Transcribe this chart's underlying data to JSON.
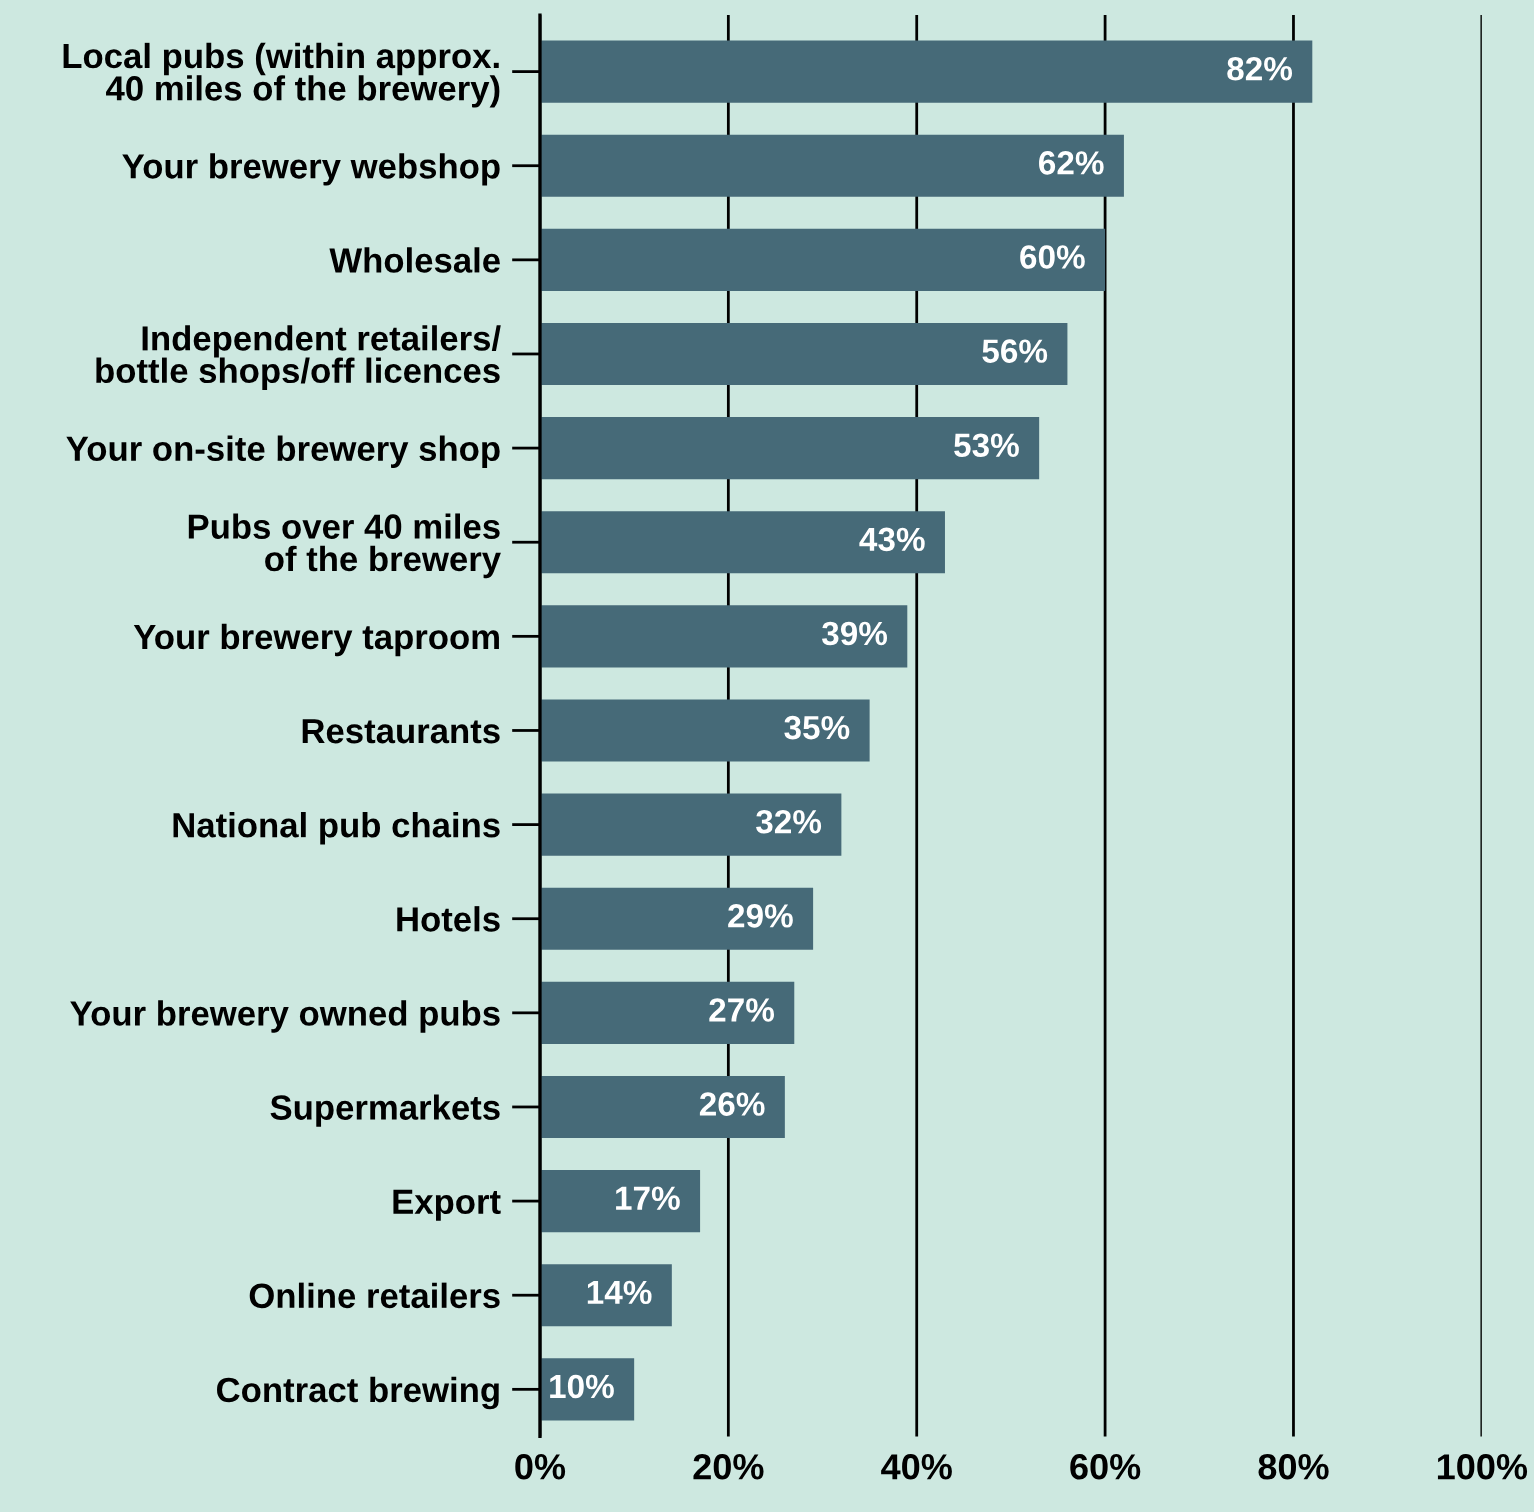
{
  "chart_data": {
    "type": "bar",
    "orientation": "horizontal",
    "categories": [
      "Local pubs (within approx.\n40 miles of the brewery)",
      "Your brewery webshop",
      "Wholesale",
      "Independent retailers/\nbottle shops/off licences",
      "Your on-site brewery shop",
      "Pubs over 40 miles\nof the brewery",
      "Your brewery taproom",
      "Restaurants",
      "National pub chains",
      "Hotels",
      "Your brewery owned pubs",
      "Supermarkets",
      "Export",
      "Online retailers",
      "Contract brewing"
    ],
    "values": [
      82,
      62,
      60,
      56,
      53,
      43,
      39,
      35,
      32,
      29,
      27,
      26,
      17,
      14,
      10
    ],
    "value_labels": [
      "82%",
      "62%",
      "60%",
      "56%",
      "53%",
      "43%",
      "39%",
      "35%",
      "32%",
      "29%",
      "27%",
      "26%",
      "17%",
      "14%",
      "10%"
    ],
    "color": "#466a78",
    "xlim": [
      0,
      100
    ],
    "xticks": [
      {
        "value": 0,
        "label": "0%"
      },
      {
        "value": 20,
        "label": "20%"
      },
      {
        "value": 40,
        "label": "40%"
      },
      {
        "value": 60,
        "label": "60%"
      },
      {
        "value": 80,
        "label": "80%"
      },
      {
        "value": 100,
        "label": "100%"
      }
    ],
    "grid": "x",
    "legend": false
  }
}
